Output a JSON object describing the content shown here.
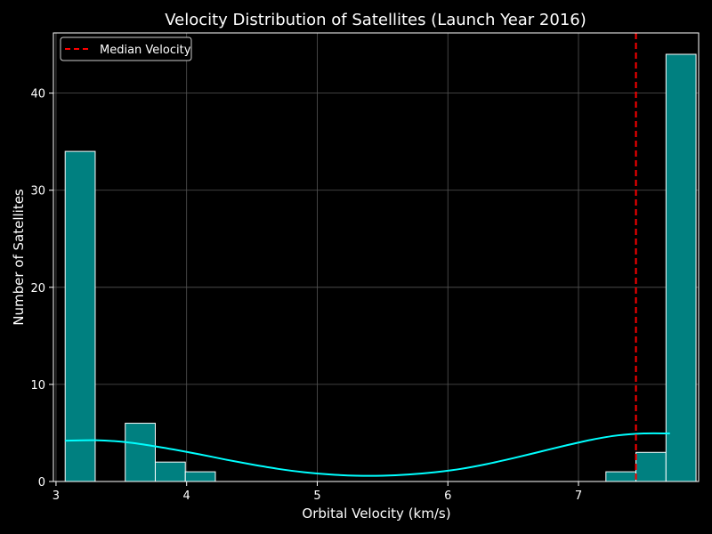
{
  "chart_data": {
    "type": "bar",
    "title": "Velocity Distribution of Satellites (Launch Year 2016)",
    "xlabel": "Orbital Velocity (km/s)",
    "ylabel": "Number of Satellites",
    "xlim": [
      2.98,
      7.92
    ],
    "ylim": [
      0,
      46.2
    ],
    "xticks": [
      3,
      4,
      5,
      6,
      7
    ],
    "yticks": [
      0,
      10,
      20,
      30,
      40
    ],
    "grid": true,
    "legend_position": "top-left",
    "bin_start": 3.07,
    "bin_width": 0.23,
    "values": [
      34,
      0,
      6,
      2,
      1,
      0,
      0,
      0,
      0,
      0,
      0,
      0,
      0,
      0,
      0,
      0,
      0,
      0,
      1,
      3,
      44
    ],
    "median_velocity": 7.44,
    "median_label": "Median Velocity",
    "kde": {
      "x": [
        3.07,
        3.3,
        3.5,
        3.7,
        3.9,
        4.1,
        4.3,
        4.5,
        4.7,
        4.9,
        5.1,
        5.3,
        5.5,
        5.7,
        5.9,
        6.1,
        6.3,
        6.5,
        6.7,
        6.9,
        7.1,
        7.3,
        7.5,
        7.7
      ],
      "y": [
        4.2,
        4.25,
        4.1,
        3.75,
        3.3,
        2.8,
        2.25,
        1.75,
        1.3,
        0.95,
        0.72,
        0.6,
        0.6,
        0.72,
        0.95,
        1.3,
        1.8,
        2.4,
        3.05,
        3.7,
        4.3,
        4.75,
        4.95,
        4.95
      ]
    },
    "colors": {
      "bar_fill": "#008080",
      "bar_edge": "#ffffff",
      "kde_line": "#00ffff",
      "median_line": "#ff0000",
      "grid": "#555555",
      "background": "#000000"
    }
  }
}
